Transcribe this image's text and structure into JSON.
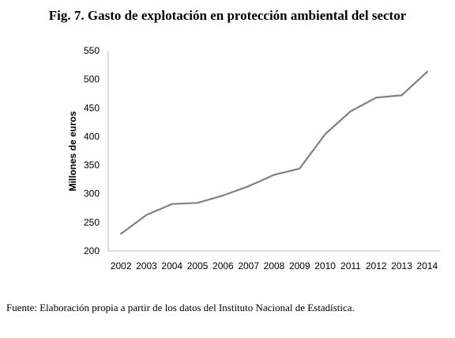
{
  "figure": {
    "title": "Fig. 7. Gasto de explotación en protección ambiental del sector",
    "source": "Fuente: Elaboración propia a partir de los datos del Instituto Nacional de Estadística."
  },
  "chart_data": {
    "type": "line",
    "title": "Fig. 7. Gasto de explotación en protección ambiental del sector",
    "xlabel": "",
    "ylabel": "Millones de euros",
    "categories": [
      "2002",
      "2003",
      "2004",
      "2005",
      "2006",
      "2007",
      "2008",
      "2009",
      "2010",
      "2011",
      "2012",
      "2013",
      "2014"
    ],
    "series": [
      {
        "values": [
          230,
          263,
          282,
          284,
          297,
          313,
          333,
          344,
          404,
          444,
          468,
          472,
          513
        ]
      }
    ],
    "ylim": [
      200,
      550
    ],
    "yticks": [
      200,
      250,
      300,
      350,
      400,
      450,
      500,
      550
    ],
    "grid": false,
    "legend": "none",
    "line_color": "#808080"
  }
}
